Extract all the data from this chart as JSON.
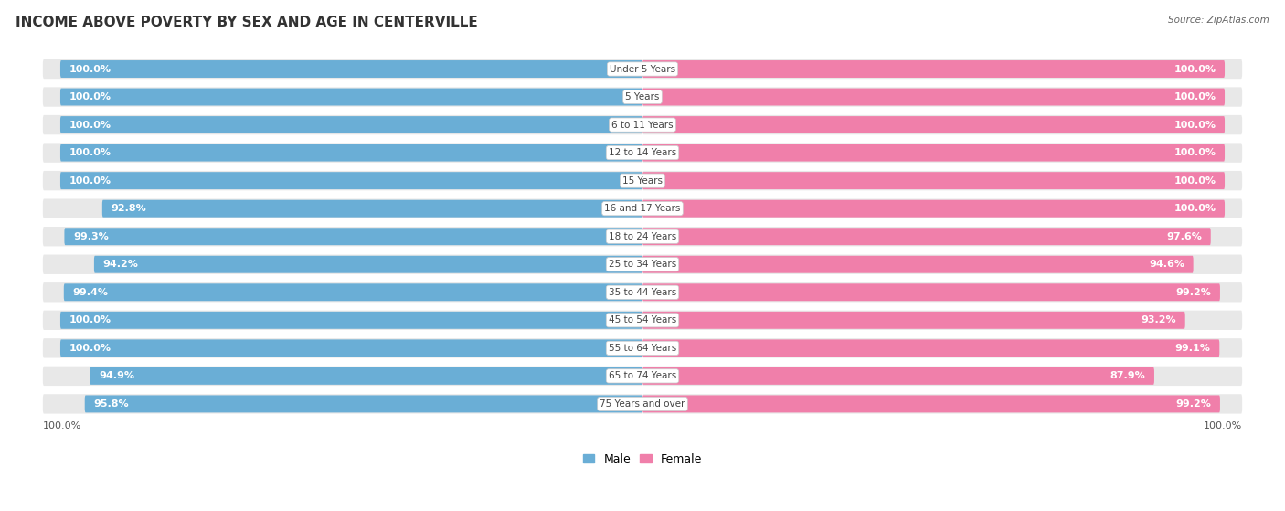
{
  "title": "INCOME ABOVE POVERTY BY SEX AND AGE IN CENTERVILLE",
  "source": "Source: ZipAtlas.com",
  "categories": [
    "Under 5 Years",
    "5 Years",
    "6 to 11 Years",
    "12 to 14 Years",
    "15 Years",
    "16 and 17 Years",
    "18 to 24 Years",
    "25 to 34 Years",
    "35 to 44 Years",
    "45 to 54 Years",
    "55 to 64 Years",
    "65 to 74 Years",
    "75 Years and over"
  ],
  "male_values": [
    100.0,
    100.0,
    100.0,
    100.0,
    100.0,
    92.8,
    99.3,
    94.2,
    99.4,
    100.0,
    100.0,
    94.9,
    95.8
  ],
  "female_values": [
    100.0,
    100.0,
    100.0,
    100.0,
    100.0,
    100.0,
    97.6,
    94.6,
    99.2,
    93.2,
    99.1,
    87.9,
    99.2
  ],
  "male_color": "#6aaed6",
  "male_light_color": "#c5dff0",
  "female_color": "#f07faa",
  "female_light_color": "#f9c0d5",
  "male_label": "Male",
  "female_label": "Female",
  "title_fontsize": 11,
  "label_fontsize": 8,
  "tick_fontsize": 8,
  "legend_fontsize": 9,
  "bottom_male_label": "100.0%",
  "bottom_female_label": "100.0%",
  "row_bg_color": "#e8e8e8",
  "row_bg_alt_color": "#f0f0f0"
}
